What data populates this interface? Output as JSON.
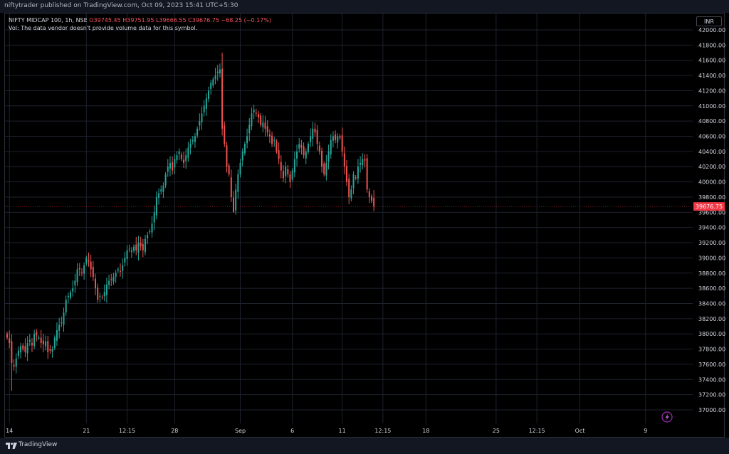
{
  "header": {
    "published": "niftytrader published on TradingView.com, Oct 09, 2023 15:41 UTC+5:30"
  },
  "legend": {
    "symbol": "NIFTY MIDCAP 100, 1h, NSE",
    "open": "O39745.45",
    "high": "H39751.95",
    "low": "L39666.55",
    "close": "C39676.75",
    "change": "−68.25 (−0.17%)",
    "volume_note": "Vol: The data vendor doesn't provide volume data for this symbol."
  },
  "price_scale": {
    "currency": "INR",
    "last_price_label": "39676.75"
  },
  "footer": {
    "brand": "TradingView"
  },
  "colors": {
    "up": "#26a69a",
    "down": "#ef5350",
    "last_price": "#f23645",
    "grid": "#1e222d",
    "background": "#000000"
  },
  "icons": {
    "bottom_right": "lightning-icon",
    "footer_logo": "tradingview-logo-icon"
  },
  "chart_data": {
    "type": "candlestick",
    "title": "NIFTY MIDCAP 100, 1h, NSE",
    "ylim": [
      36900,
      42150
    ],
    "y_ticks": [
      37000,
      37200,
      37400,
      37600,
      37800,
      38000,
      38200,
      38400,
      38600,
      38800,
      39000,
      39200,
      39400,
      39600,
      39800,
      40000,
      40200,
      40400,
      40600,
      40800,
      41000,
      41200,
      41400,
      41600,
      41800,
      42000
    ],
    "x_ticks": [
      {
        "label": "14",
        "bar": 1
      },
      {
        "label": "21",
        "bar": 35
      },
      {
        "label": "12:15",
        "bar": 53
      },
      {
        "label": "28",
        "bar": 74
      },
      {
        "label": "Sep",
        "bar": 103
      },
      {
        "label": "6",
        "bar": 126
      },
      {
        "label": "11",
        "bar": 148
      },
      {
        "label": "12:15",
        "bar": 166
      },
      {
        "label": "18",
        "bar": 185
      },
      {
        "label": "25",
        "bar": 216
      },
      {
        "label": "12:15",
        "bar": 234
      },
      {
        "label": "Oct",
        "bar": 253
      },
      {
        "label": "9",
        "bar": 282
      }
    ],
    "last_price": 39676.75,
    "note": "Approximate OHLC path reconstructed from the screenshot; bar index = hourly candle order",
    "closes": [
      37950,
      37880,
      37620,
      37570,
      37680,
      37780,
      37840,
      37800,
      37760,
      37880,
      37920,
      37850,
      38000,
      37980,
      37950,
      37880,
      37860,
      37900,
      37760,
      37780,
      37800,
      37950,
      38050,
      38120,
      38150,
      38280,
      38450,
      38500,
      38550,
      38600,
      38700,
      38850,
      38850,
      38800,
      38900,
      39000,
      38950,
      38850,
      38750,
      38600,
      38450,
      38500,
      38480,
      38550,
      38650,
      38700,
      38720,
      38750,
      38800,
      38850,
      38820,
      38900,
      39000,
      39100,
      39120,
      39100,
      39150,
      39100,
      39200,
      39150,
      39100,
      39250,
      39300,
      39350,
      39450,
      39600,
      39800,
      39850,
      39900,
      39950,
      40100,
      40200,
      40250,
      40150,
      40300,
      40350,
      40400,
      40300,
      40250,
      40350,
      40450,
      40500,
      40550,
      40600,
      40700,
      40800,
      40900,
      41000,
      41100,
      41200,
      41300,
      41350,
      41400,
      41450,
      41480,
      40700,
      40500,
      40200,
      40100,
      39800,
      39600,
      39900,
      40100,
      40250,
      40400,
      40500,
      40600,
      40750,
      40900,
      40950,
      40900,
      40850,
      40750,
      40780,
      40700,
      40650,
      40600,
      40500,
      40550,
      40400,
      40300,
      40150,
      40050,
      40200,
      40100,
      40000,
      40150,
      40300,
      40400,
      40500,
      40450,
      40350,
      40400,
      40500,
      40600,
      40700,
      40650,
      40500,
      40400,
      40200,
      40100,
      40250,
      40400,
      40550,
      40600,
      40550,
      40600,
      40580,
      40400,
      40200,
      40000,
      39800,
      39900,
      40100,
      40050,
      40200,
      40250,
      40300,
      40280,
      39900,
      39800,
      39750,
      39676.75
    ]
  }
}
